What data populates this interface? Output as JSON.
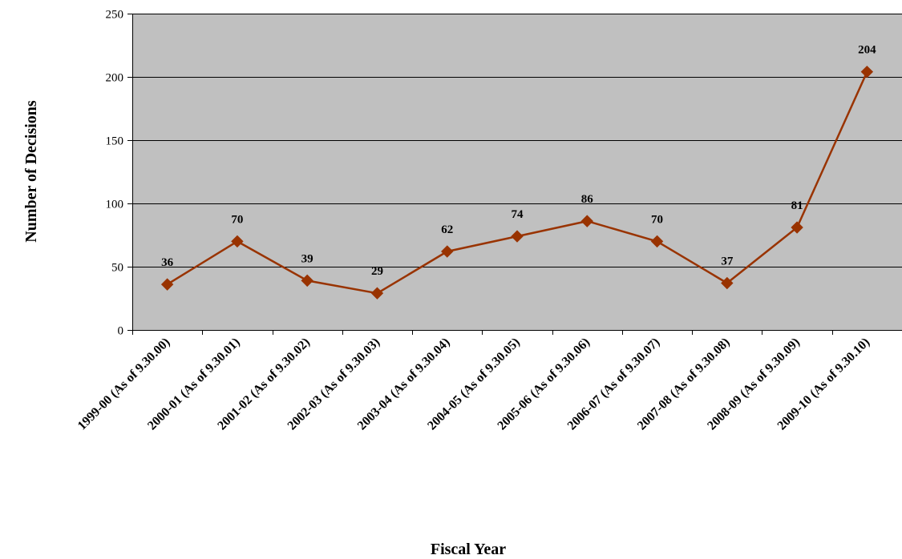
{
  "chart_data": {
    "type": "line",
    "categories": [
      "1999-00 (As of 9.30.00)",
      "2000-01 (As of 9.30.01)",
      "2001-02 (As of 9.30.02)",
      "2002-03 (As of 9.30.03)",
      "2003-04 (As of 9.30.04)",
      "2004-05 (As of 9.30.05)",
      "2005-06 (As of 9.30.06)",
      "2006-07 (As of 9.30.07)",
      "2007-08 (As of 9.30.08)",
      "2008-09 (As of 9.30.09)",
      "2009-10 (As of 9.30.10)"
    ],
    "values": [
      36,
      70,
      39,
      29,
      62,
      74,
      86,
      70,
      37,
      81,
      204
    ],
    "data_labels": [
      "36",
      "70",
      "39",
      "29",
      "62",
      "74",
      "86",
      "70",
      "37",
      "81",
      "204"
    ],
    "title": "",
    "xlabel": "Fiscal Year",
    "ylabel": "Number of Decisions",
    "ylim": [
      0,
      250
    ],
    "yticks": [
      0,
      50,
      100,
      150,
      200,
      250
    ],
    "ytick_labels": [
      "0",
      "50",
      "100",
      "150",
      "200",
      "250"
    ],
    "grid": "horizontal",
    "legend": "none",
    "colors": {
      "plot_background": "#c0c0c0",
      "series_line": "#993300",
      "marker": "#993300",
      "gridline": "#000000"
    },
    "marker": "diamond"
  }
}
